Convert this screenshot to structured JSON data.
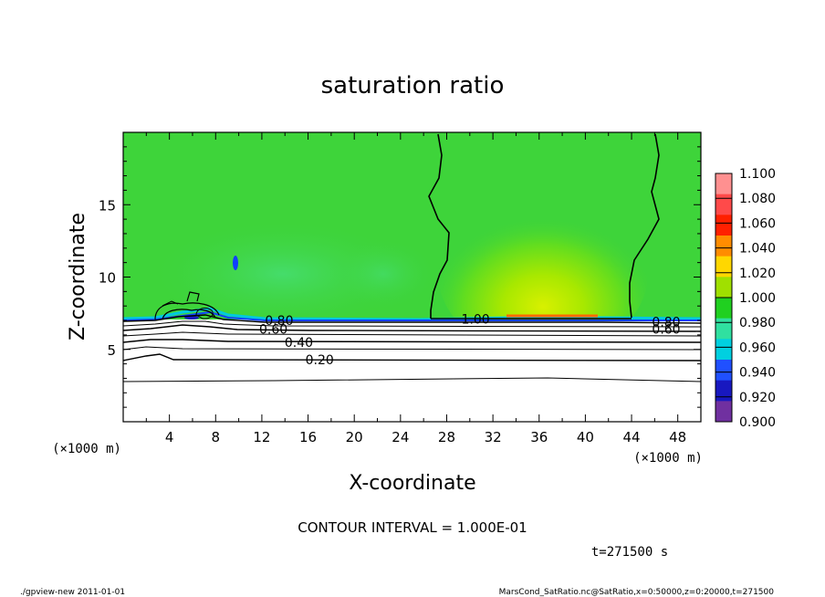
{
  "chart_data": {
    "type": "heatmap",
    "title": "saturation ratio",
    "xlabel": "X-coordinate",
    "ylabel": "Z-coordinate",
    "x_unit": "(×1000 m)",
    "y_unit": "(×1000 m)",
    "xlim": [
      0,
      50
    ],
    "ylim": [
      0,
      20
    ],
    "x_ticks": [
      "4",
      "8",
      "12",
      "16",
      "20",
      "24",
      "28",
      "32",
      "36",
      "40",
      "44",
      "48"
    ],
    "y_ticks": [
      "5",
      "10",
      "15"
    ],
    "x_tick_values": [
      4,
      8,
      12,
      16,
      20,
      24,
      28,
      32,
      36,
      40,
      44,
      48
    ],
    "y_tick_values": [
      5,
      10,
      15
    ],
    "colorbar": {
      "labels": [
        "1.100",
        "1.080",
        "1.060",
        "1.040",
        "1.020",
        "1.000",
        "0.980",
        "0.960",
        "0.940",
        "0.920",
        "0.900"
      ],
      "colors": [
        "#ff9090",
        "#ff4a4a",
        "#ff2000",
        "#ff8c00",
        "#ffd700",
        "#a0e000",
        "#20d020",
        "#30e0a0",
        "#00d0e0",
        "#2050ff",
        "#1818c0",
        "#7030a0"
      ]
    },
    "contour_labels": [
      {
        "text": "0.80",
        "x": 13.5,
        "z": 7.0
      },
      {
        "text": "0.60",
        "x": 13.0,
        "z": 6.4
      },
      {
        "text": "0.40",
        "x": 15.2,
        "z": 5.5
      },
      {
        "text": "0.20",
        "x": 17.0,
        "z": 4.3
      },
      {
        "text": "1.00",
        "x": 30.5,
        "z": 7.1
      },
      {
        "text": "0.80",
        "x": 47.0,
        "z": 6.9
      },
      {
        "text": "0.60",
        "x": 47.0,
        "z": 6.4
      }
    ],
    "annotation_interval": "CONTOUR INTERVAL = 1.000E-01",
    "annotation_time": "t=271500 s"
  },
  "footer": {
    "left": "./gpview-new  2011-01-01",
    "right": "MarsCond_SatRatio.nc@SatRatio,x=0:50000,z=0:20000,t=271500"
  }
}
